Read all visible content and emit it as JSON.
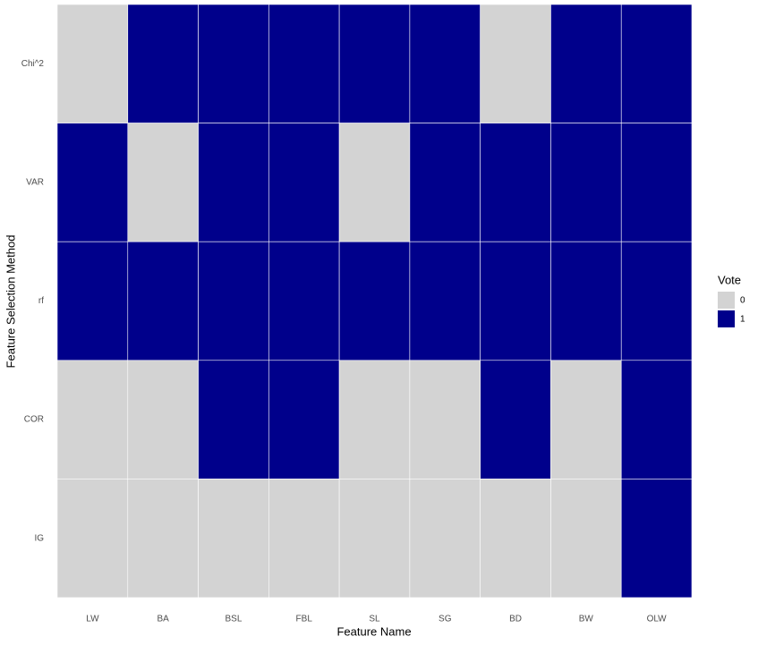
{
  "chart_data": {
    "type": "heatmap",
    "x_label": "Feature Name",
    "y_label": "Feature Selection Method",
    "x_categories": [
      "LW",
      "BA",
      "BSL",
      "FBL",
      "SL",
      "SG",
      "BD",
      "BW",
      "OLW"
    ],
    "y_categories": [
      "Chi^2",
      "VAR",
      "rf",
      "COR",
      "IG"
    ],
    "values": [
      [
        0,
        1,
        1,
        1,
        1,
        1,
        0,
        1,
        1
      ],
      [
        1,
        0,
        1,
        1,
        0,
        1,
        1,
        1,
        1
      ],
      [
        1,
        1,
        1,
        1,
        1,
        1,
        1,
        1,
        1
      ],
      [
        0,
        0,
        1,
        1,
        0,
        0,
        1,
        0,
        1
      ],
      [
        0,
        0,
        0,
        0,
        0,
        0,
        0,
        0,
        1
      ]
    ],
    "legend": {
      "title": "Vote",
      "levels": [
        0,
        1
      ],
      "colors": [
        "#d3d3d3",
        "#00008b"
      ]
    }
  }
}
